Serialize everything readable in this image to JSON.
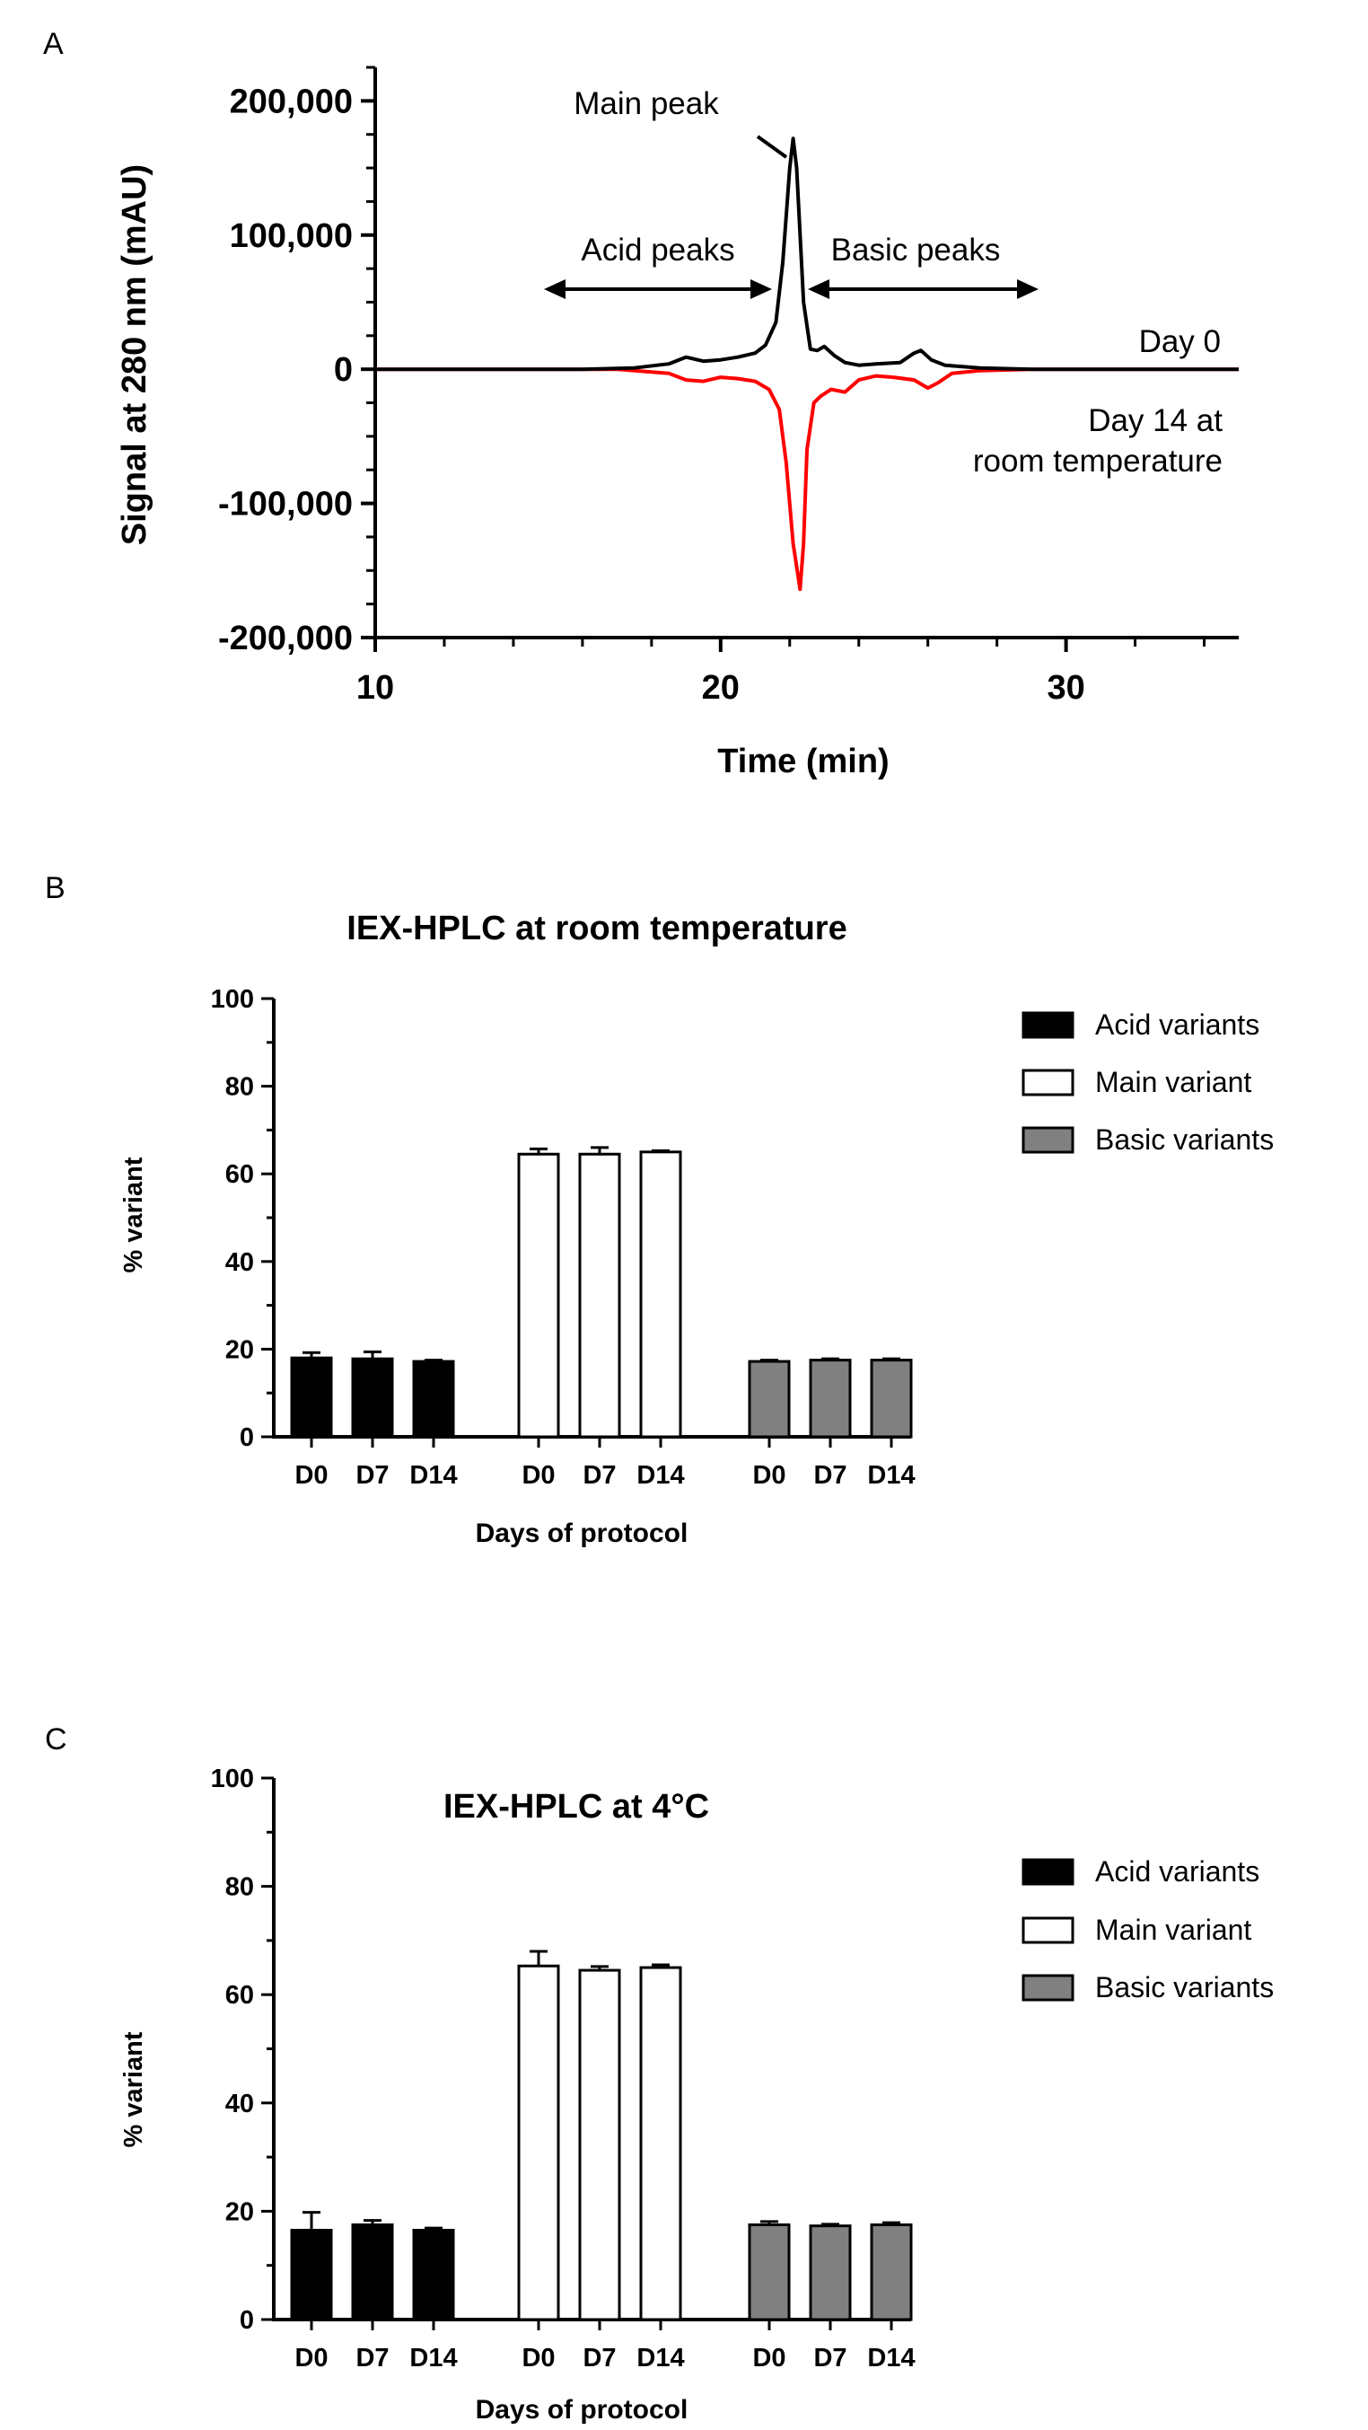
{
  "panels": {
    "A": {
      "letter": "A"
    },
    "B": {
      "letter": "B"
    },
    "C": {
      "letter": "C"
    }
  },
  "chart_data": [
    {
      "panel": "A",
      "type": "line",
      "title": "",
      "xlabel": "Time (min)",
      "ylabel": "Signal at 280 nm (mAU)",
      "xlim": [
        10,
        35
      ],
      "ylim": [
        -200000,
        225000
      ],
      "xticks": [
        10,
        20,
        30
      ],
      "xtick_labels": [
        "10",
        "20",
        "30"
      ],
      "yticks": [
        -200000,
        -100000,
        0,
        100000,
        200000
      ],
      "ytick_labels": [
        "-200,000",
        "-100,000",
        "0",
        "100,000",
        "200,000"
      ],
      "series": [
        {
          "name": "Day 0",
          "color": "#000000",
          "x": [
            10,
            16,
            17.5,
            18.5,
            19.0,
            19.5,
            20.0,
            20.5,
            21.0,
            21.3,
            21.6,
            21.8,
            22.0,
            22.1,
            22.2,
            22.4,
            22.6,
            22.8,
            23.0,
            23.3,
            23.6,
            24.0,
            24.5,
            25.2,
            25.6,
            25.8,
            26.1,
            26.5,
            27.5,
            29,
            35
          ],
          "y": [
            0,
            0,
            1000,
            4000,
            9000,
            6000,
            7000,
            9000,
            12000,
            18000,
            35000,
            80000,
            150000,
            172000,
            150000,
            50000,
            15000,
            14000,
            17000,
            10000,
            5000,
            3000,
            4000,
            5000,
            12000,
            14000,
            7000,
            3000,
            1000,
            0,
            0
          ]
        },
        {
          "name": "Day 14 at room temperature",
          "color": "#ff0000",
          "x": [
            10,
            17,
            18.5,
            19.0,
            19.5,
            20.0,
            20.5,
            21.0,
            21.4,
            21.7,
            21.9,
            22.1,
            22.3,
            22.4,
            22.5,
            22.7,
            22.9,
            23.2,
            23.6,
            24.0,
            24.5,
            25.0,
            25.6,
            26.0,
            26.3,
            26.7,
            27.5,
            29,
            35
          ],
          "y": [
            0,
            0,
            -3000,
            -8000,
            -9000,
            -6000,
            -7000,
            -9000,
            -15000,
            -30000,
            -70000,
            -130000,
            -164000,
            -130000,
            -60000,
            -25000,
            -20000,
            -15000,
            -17000,
            -8000,
            -5000,
            -6000,
            -8000,
            -14000,
            -10000,
            -3000,
            -1000,
            0,
            0
          ]
        }
      ],
      "annotations": [
        "Main peak",
        "Acid peaks",
        "Basic peaks",
        "Day 0",
        "Day 14 at",
        "room temperature"
      ]
    },
    {
      "panel": "B",
      "type": "bar",
      "title": "IEX-HPLC at room temperature",
      "xlabel": "Days of protocol",
      "ylabel": "% variant",
      "ylim": [
        0,
        100
      ],
      "yticks": [
        0,
        20,
        40,
        60,
        80,
        100
      ],
      "categories": [
        "D0",
        "D7",
        "D14"
      ],
      "legend_position": "top-right",
      "series": [
        {
          "name": "Acid variants",
          "color": "#000000",
          "values": [
            18,
            17.8,
            17.2
          ],
          "errors": [
            1.2,
            1.6,
            0.3
          ]
        },
        {
          "name": "Main variant",
          "color": "#ffffff",
          "values": [
            64.5,
            64.5,
            65
          ],
          "errors": [
            1.2,
            1.5,
            0.3
          ]
        },
        {
          "name": "Basic variants",
          "color": "#808080",
          "values": [
            17.2,
            17.5,
            17.5
          ],
          "errors": [
            0.3,
            0.3,
            0.3
          ]
        }
      ]
    },
    {
      "panel": "C",
      "type": "bar",
      "title": "IEX-HPLC at 4°C",
      "xlabel": "Days of protocol",
      "ylabel": "% variant",
      "ylim": [
        0,
        100
      ],
      "yticks": [
        0,
        20,
        40,
        60,
        80,
        100
      ],
      "categories": [
        "D0",
        "D7",
        "D14"
      ],
      "legend_position": "top-right",
      "series": [
        {
          "name": "Acid variants",
          "color": "#000000",
          "values": [
            16.5,
            17.5,
            16.5
          ],
          "errors": [
            3.3,
            0.8,
            0.4
          ]
        },
        {
          "name": "Main variant",
          "color": "#ffffff",
          "values": [
            65.3,
            64.5,
            65
          ],
          "errors": [
            2.7,
            0.7,
            0.5
          ]
        },
        {
          "name": "Basic variants",
          "color": "#808080",
          "values": [
            17.5,
            17.3,
            17.5
          ],
          "errors": [
            0.6,
            0.3,
            0.4
          ]
        }
      ]
    }
  ]
}
